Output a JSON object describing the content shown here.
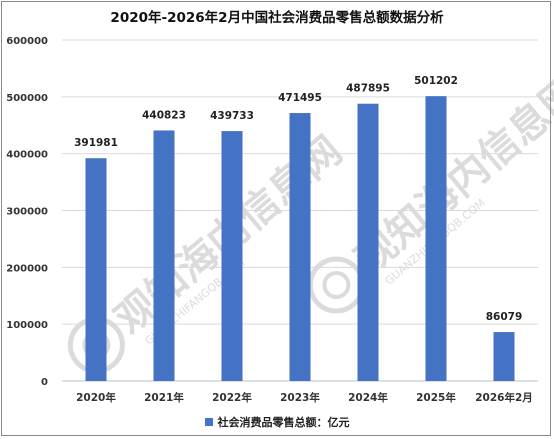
{
  "chart_data": {
    "type": "bar",
    "title": "2020年-2026年2月中国社会消费品零售总额数据分析",
    "categories": [
      "2020年",
      "2021年",
      "2022年",
      "2023年",
      "2024年",
      "2025年",
      "2026年2月"
    ],
    "series": [
      {
        "name": "社会消费品零售总额：亿元",
        "values": [
          391981,
          440823,
          439733,
          471495,
          487895,
          501202,
          86079
        ],
        "color": "#4472c4"
      }
    ],
    "ylim": [
      0,
      600000
    ],
    "yticks": [
      0,
      100000,
      200000,
      300000,
      400000,
      500000,
      600000
    ],
    "grid": true,
    "data_labels": true,
    "legend": "bottom-center"
  },
  "watermark": {
    "text": "观知海内信息网",
    "subtext": "GUANZHIFANGQB.COM",
    "color": "#b5b5b5"
  }
}
